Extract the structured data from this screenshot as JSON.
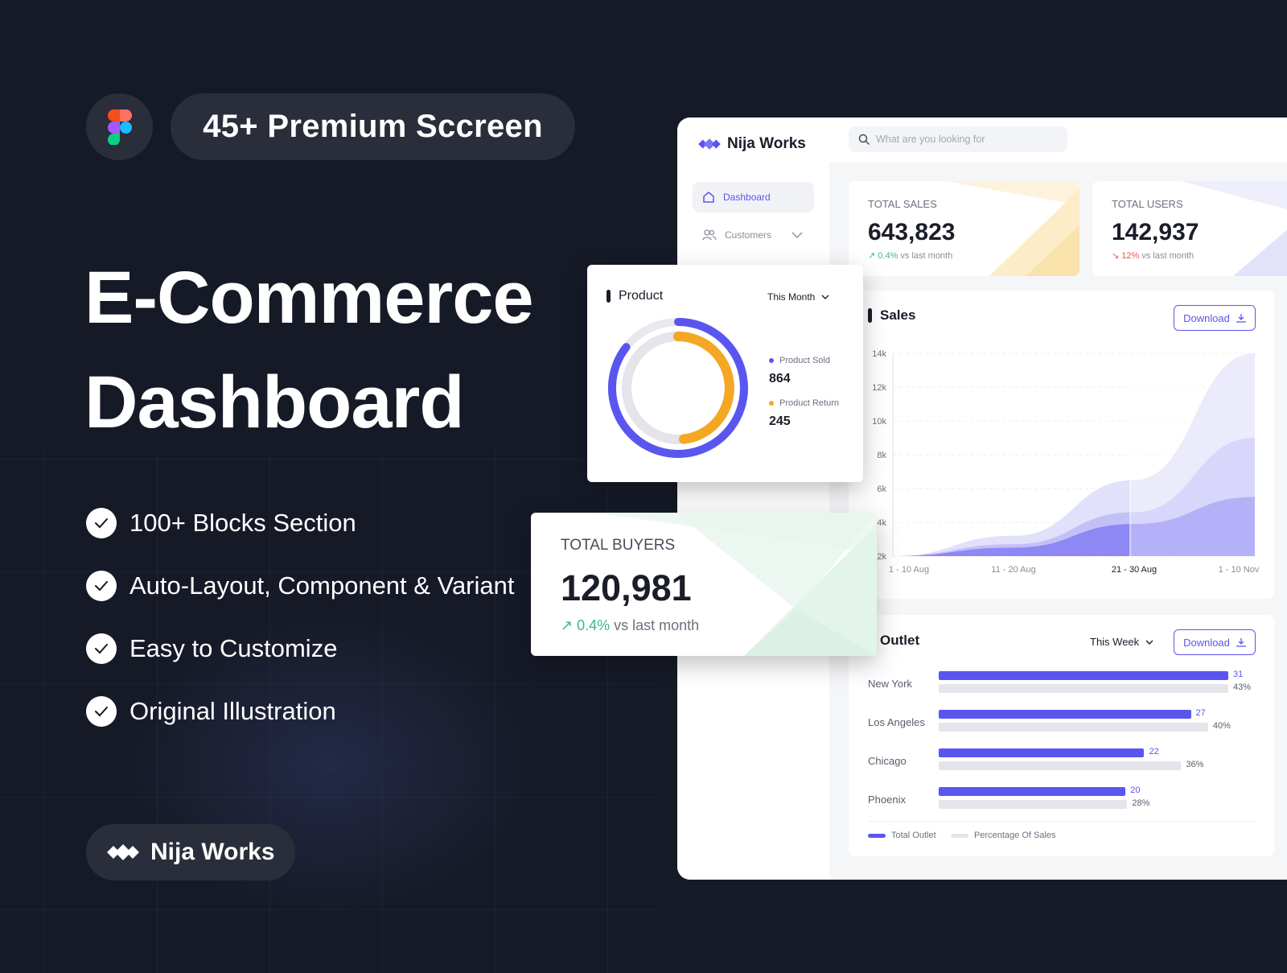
{
  "hero": {
    "pill_text": "45+ Premium Sccreen",
    "title_line1": "E-Commerce",
    "title_line2": "Dashboard",
    "features": [
      "100+ Blocks Section",
      "Auto-Layout, Component & Variant",
      "Easy to Customize",
      "Original Illustration"
    ],
    "brand": "Nija Works"
  },
  "dashboard": {
    "logo": "Nija Works",
    "search_placeholder": "What are you looking for",
    "nav": {
      "dashboard": "Dashboard",
      "customers": "Customers"
    },
    "total_sales": {
      "label": "TOTAL SALES",
      "value": "643,823",
      "change": "0.4%",
      "suffix": "vs last month",
      "trend": "up"
    },
    "total_users": {
      "label": "TOTAL USERS",
      "value": "142,937",
      "change": "12%",
      "suffix": "vs last month",
      "trend": "down"
    },
    "sales": {
      "title": "Sales",
      "download": "Download"
    },
    "outlet": {
      "title": "Outlet",
      "period": "This Week",
      "download": "Download",
      "rows": [
        {
          "city": "New York",
          "outlets": "31",
          "percent": "43%",
          "outlet_value": 31,
          "percent_value": 43
        },
        {
          "city": "Los Angeles",
          "outlets": "27",
          "percent": "40%",
          "outlet_value": 27,
          "percent_value": 40
        },
        {
          "city": "Chicago",
          "outlets": "22",
          "percent": "36%",
          "outlet_value": 22,
          "percent_value": 36
        },
        {
          "city": "Phoenix",
          "outlets": "20",
          "percent": "28%",
          "outlet_value": 20,
          "percent_value": 28
        }
      ],
      "legend_outlet": "Total Outlet",
      "legend_percent": "Percentage Of Sales"
    }
  },
  "product_card": {
    "title": "Product",
    "period": "This Month",
    "sold_label": "Product Sold",
    "sold_value": "864",
    "return_label": "Product Return",
    "return_value": "245"
  },
  "buyers_card": {
    "label": "TOTAL BUYERS",
    "value": "120,981",
    "change": "0.4%",
    "suffix": "vs last month"
  },
  "colors": {
    "accent": "#5b55f0",
    "accent_light": "#b9b5f8",
    "orange": "#f5a623",
    "green": "#3dba82",
    "red": "#ef5b4c",
    "background": "#161a27"
  },
  "chart_data": {
    "type": "area",
    "title": "Sales",
    "x": [
      "1 - 10 Aug",
      "11 - 20 Aug",
      "21 - 30 Aug",
      "1 - 10 Nov"
    ],
    "y_ticks": [
      "14k",
      "12k",
      "10k",
      "8k",
      "6k",
      "4k",
      "2k"
    ],
    "ylim": [
      2000,
      14000
    ],
    "highlighted_x": "21 - 30 Aug",
    "series": [
      {
        "values": [
          2000,
          3200,
          6500,
          14000
        ]
      },
      {
        "values": [
          2000,
          2700,
          4600,
          9000
        ]
      },
      {
        "values": [
          2000,
          2500,
          3900,
          5500
        ]
      }
    ],
    "grid": true
  }
}
